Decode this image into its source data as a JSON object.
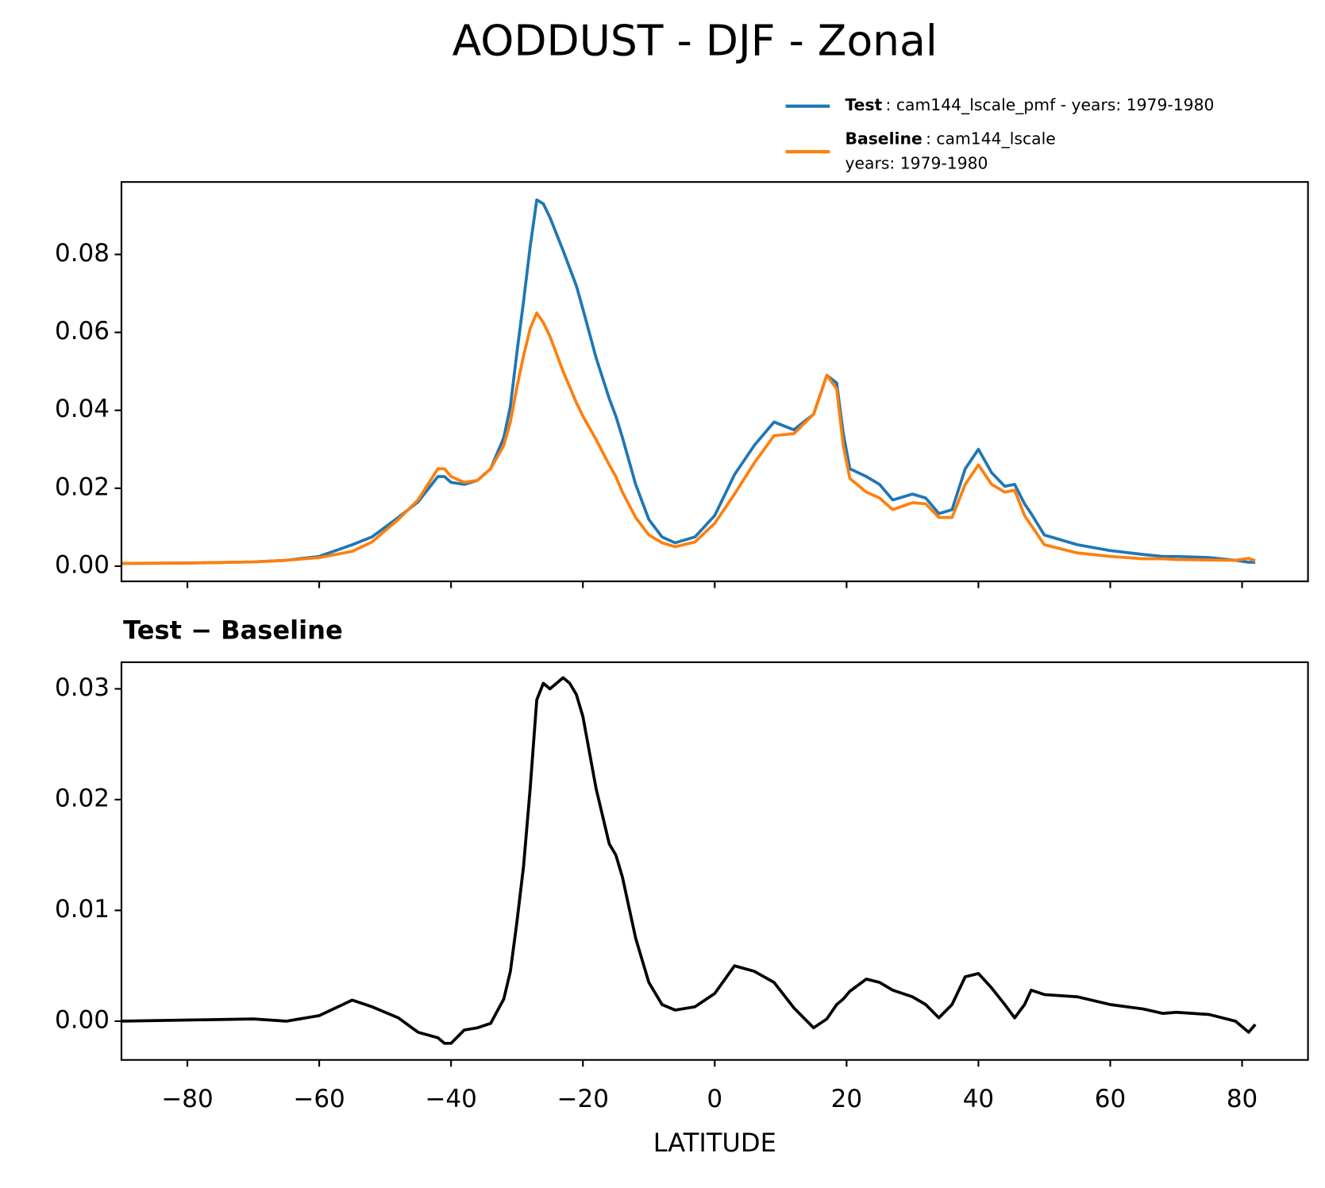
{
  "title": "AODDUST - DJF - Zonal",
  "chart_data": [
    {
      "type": "line",
      "x": [
        -90,
        -80,
        -70,
        -65,
        -60,
        -55,
        -52,
        -48,
        -45,
        -42,
        -41,
        -40,
        -38,
        -36,
        -34,
        -32,
        -31,
        -30,
        -29,
        -28,
        -27,
        -26,
        -25,
        -23,
        -22,
        -21,
        -20,
        -18,
        -16,
        -15,
        -14,
        -12,
        -10,
        -8,
        -6,
        -3,
        0,
        3,
        6,
        9,
        12,
        15,
        17,
        18.5,
        19.5,
        20.5,
        23,
        25,
        27,
        30,
        32,
        34,
        36,
        38,
        40,
        42,
        44,
        45.5,
        47,
        48,
        50,
        55,
        60,
        65,
        68,
        70,
        75,
        79,
        81,
        82
      ],
      "series": [
        {
          "name": "Test",
          "legend_lines": [
            ": cam144_lscale_pmf - years: 1979-1980"
          ],
          "color": "#1f77b4",
          "values": [
            0.0007,
            0.0008,
            0.0011,
            0.0015,
            0.0025,
            0.0055,
            0.0075,
            0.0125,
            0.0165,
            0.023,
            0.023,
            0.0215,
            0.021,
            0.022,
            0.025,
            0.033,
            0.041,
            0.055,
            0.068,
            0.082,
            0.094,
            0.093,
            0.0895,
            0.081,
            0.0765,
            0.072,
            0.066,
            0.0535,
            0.043,
            0.0385,
            0.033,
            0.021,
            0.012,
            0.0075,
            0.006,
            0.0075,
            0.013,
            0.0235,
            0.031,
            0.037,
            0.035,
            0.039,
            0.049,
            0.047,
            0.034,
            0.025,
            0.023,
            0.021,
            0.017,
            0.0185,
            0.0175,
            0.0135,
            0.0145,
            0.025,
            0.03,
            0.024,
            0.0205,
            0.021,
            0.016,
            0.0135,
            0.008,
            0.0055,
            0.004,
            0.003,
            0.0025,
            0.0025,
            0.0022,
            0.0015,
            0.001,
            0.001
          ]
        },
        {
          "name": "Baseline",
          "legend_lines": [
            ": cam144_lscale",
            "years: 1979-1980"
          ],
          "color": "#ff7f0e",
          "values": [
            0.0007,
            0.0008,
            0.0011,
            0.0015,
            0.0022,
            0.0038,
            0.0062,
            0.012,
            0.017,
            0.025,
            0.025,
            0.023,
            0.0215,
            0.022,
            0.025,
            0.031,
            0.037,
            0.046,
            0.054,
            0.061,
            0.065,
            0.0625,
            0.059,
            0.05,
            0.046,
            0.042,
            0.0385,
            0.0325,
            0.026,
            0.023,
            0.019,
            0.0125,
            0.008,
            0.006,
            0.005,
            0.0062,
            0.011,
            0.0185,
            0.0265,
            0.0335,
            0.034,
            0.039,
            0.049,
            0.0455,
            0.031,
            0.0225,
            0.019,
            0.0175,
            0.0145,
            0.0163,
            0.016,
            0.0125,
            0.0125,
            0.021,
            0.026,
            0.021,
            0.019,
            0.0195,
            0.013,
            0.0105,
            0.0055,
            0.0034,
            0.0025,
            0.0019,
            0.0019,
            0.0017,
            0.0016,
            0.0015,
            0.002,
            0.0014
          ]
        }
      ],
      "xlim": [
        -90,
        90
      ],
      "xticks": [
        -80,
        -60,
        -40,
        -20,
        0,
        20,
        40,
        60,
        80
      ],
      "show_xtick_labels": false,
      "ylim": [
        -0.0039,
        0.0986
      ],
      "yticks": [
        {
          "value": 0,
          "label": "0.00"
        },
        0.02,
        0.04,
        0.06,
        0.08
      ],
      "legend": "upper right"
    },
    {
      "type": "line",
      "title": "Test − Baseline",
      "xlabel": "LATITUDE",
      "x": [
        -90,
        -80,
        -70,
        -65,
        -60,
        -55,
        -52,
        -48,
        -45,
        -42,
        -41,
        -40,
        -38,
        -36,
        -34,
        -32,
        -31,
        -30,
        -29,
        -28,
        -27,
        -26,
        -25,
        -23,
        -22,
        -21,
        -20,
        -18,
        -16,
        -15,
        -14,
        -12,
        -10,
        -8,
        -6,
        -3,
        0,
        3,
        6,
        9,
        12,
        15,
        17,
        18.5,
        19.5,
        20.5,
        23,
        25,
        27,
        30,
        32,
        34,
        36,
        38,
        40,
        42,
        44,
        45.5,
        47,
        48,
        50,
        55,
        60,
        65,
        68,
        70,
        75,
        79,
        81,
        82
      ],
      "series": [
        {
          "color": "#000000",
          "values": [
            0.0,
            0.0001,
            0.0002,
            0.0,
            0.0005,
            0.0019,
            0.0013,
            0.0003,
            -0.001,
            -0.0015,
            -0.002,
            -0.002,
            -0.0008,
            -0.0006,
            -0.0002,
            0.002,
            0.0045,
            0.009,
            0.014,
            0.021,
            0.029,
            0.0305,
            0.03,
            0.031,
            0.0305,
            0.0295,
            0.0275,
            0.021,
            0.016,
            0.015,
            0.013,
            0.0075,
            0.0035,
            0.0015,
            0.001,
            0.0013,
            0.0025,
            0.005,
            0.0045,
            0.0035,
            0.0012,
            -0.0006,
            0.0002,
            0.0015,
            0.002,
            0.0027,
            0.0038,
            0.0035,
            0.0028,
            0.0022,
            0.0015,
            0.0003,
            0.0015,
            0.004,
            0.0043,
            0.003,
            0.0015,
            0.0003,
            0.0015,
            0.0028,
            0.0024,
            0.0022,
            0.0015,
            0.0011,
            0.0007,
            0.0008,
            0.0006,
            0.0,
            -0.001,
            -0.0003
          ]
        }
      ],
      "xlim": [
        -90,
        90
      ],
      "xticks": [
        {
          "value": -80,
          "label": "−80"
        },
        {
          "value": -60,
          "label": "−60"
        },
        {
          "value": -40,
          "label": "−40"
        },
        {
          "value": -20,
          "label": "−20"
        },
        0,
        20,
        40,
        60,
        80
      ],
      "show_xtick_labels": true,
      "ylim": [
        -0.0035,
        0.0324
      ],
      "yticks": [
        {
          "value": 0,
          "label": "0.00"
        },
        0.01,
        0.02,
        0.03
      ]
    }
  ]
}
